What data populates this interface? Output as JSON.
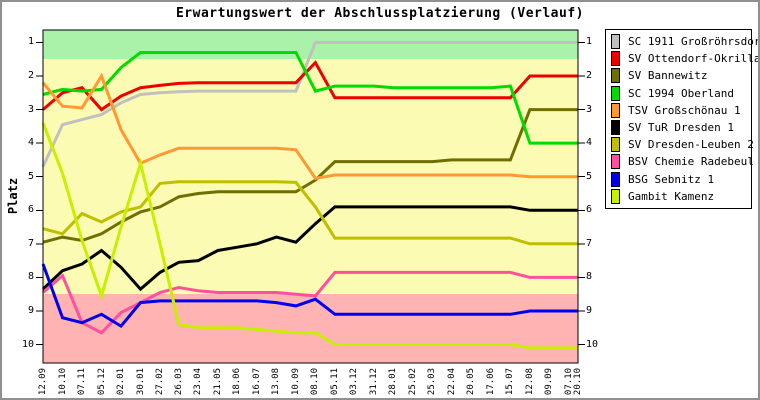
{
  "window": {
    "border_color": "#909090",
    "background": "#ffffff"
  },
  "title": "Erwartungswert der Abschlussplatzierung (Verlauf)",
  "chart_data": {
    "type": "line",
    "title": "Erwartungswert der Abschlussplatzierung (Verlauf)",
    "xlabel": "",
    "ylabel": "Platz",
    "y_axis_inverted": true,
    "ylim": [
      0.63,
      10.55
    ],
    "y_ticks": [
      1,
      2,
      3,
      4,
      5,
      6,
      7,
      8,
      9,
      10
    ],
    "grid": false,
    "legend_position": "right-outside",
    "x_tick_labels": [
      "12.09",
      "10.10",
      "07.11",
      "05.12",
      "02.01",
      "30.01",
      "27.02",
      "26.03",
      "23.04",
      "21.05",
      "18.06",
      "16.07",
      "13.08",
      "10.09",
      "08.10",
      "05.11",
      "03.12",
      "31.12",
      "28.01",
      "25.02",
      "25.03",
      "22.04",
      "20.05",
      "17.06",
      "15.07",
      "12.08",
      "09.09",
      "07.10",
      "20.10"
    ],
    "x_days": [
      0,
      28,
      56,
      84,
      112,
      140,
      168,
      195,
      223,
      251,
      279,
      307,
      335,
      363,
      391,
      419,
      447,
      475,
      503,
      531,
      559,
      587,
      615,
      643,
      671,
      699,
      727,
      755,
      768
    ],
    "bands": [
      {
        "name": "top-zone",
        "from": 0.5,
        "to": 1.5,
        "color": "#AAF1AA"
      },
      {
        "name": "mid-zone",
        "from": 1.5,
        "to": 8.5,
        "color": "#FBFBB3"
      },
      {
        "name": "relegation-zone",
        "from": 8.5,
        "to": 10.6,
        "color": "#FFB3B3"
      }
    ],
    "series": [
      {
        "name": "SC 1911 Großröhrsdorf",
        "color": "#C0C0C0",
        "values": [
          4.7,
          3.45,
          3.3,
          3.15,
          2.8,
          2.55,
          2.5,
          2.47,
          2.45,
          2.45,
          2.45,
          2.45,
          2.45,
          2.45,
          1,
          1,
          1,
          1,
          1,
          1,
          1,
          1,
          1,
          1,
          1,
          1,
          1,
          1,
          1
        ]
      },
      {
        "name": "SV Ottendorf-Okrilla",
        "color": "#EE0000",
        "values": [
          3.0,
          2.5,
          2.35,
          3.0,
          2.6,
          2.35,
          2.28,
          2.22,
          2.2,
          2.2,
          2.2,
          2.2,
          2.2,
          2.2,
          1.6,
          2.65,
          2.65,
          2.65,
          2.65,
          2.65,
          2.65,
          2.65,
          2.65,
          2.65,
          2.65,
          2.0,
          2.0,
          2.0,
          2.0
        ]
      },
      {
        "name": "SV Bannewitz",
        "color": "#6F6F00",
        "values": [
          6.95,
          6.8,
          6.9,
          6.7,
          6.35,
          6.05,
          5.9,
          5.6,
          5.5,
          5.45,
          5.45,
          5.45,
          5.45,
          5.45,
          5.1,
          4.55,
          4.55,
          4.55,
          4.55,
          4.55,
          4.55,
          4.5,
          4.5,
          4.5,
          4.5,
          3.0,
          3.0,
          3.0,
          3.0
        ]
      },
      {
        "name": "SC 1994 Oberland",
        "color": "#00DC00",
        "values": [
          2.55,
          2.4,
          2.45,
          2.4,
          1.75,
          1.3,
          1.3,
          1.3,
          1.3,
          1.3,
          1.3,
          1.3,
          1.3,
          1.3,
          2.45,
          2.3,
          2.3,
          2.3,
          2.35,
          2.35,
          2.35,
          2.35,
          2.35,
          2.35,
          2.3,
          4.0,
          4.0,
          4.0,
          4.0
        ]
      },
      {
        "name": "TSV Großschönau 1",
        "color": "#FF9933",
        "values": [
          2.2,
          2.9,
          2.95,
          2.0,
          3.6,
          4.6,
          4.35,
          4.15,
          4.15,
          4.15,
          4.15,
          4.15,
          4.15,
          4.2,
          5.05,
          4.95,
          4.95,
          4.95,
          4.95,
          4.95,
          4.95,
          4.95,
          4.95,
          4.95,
          4.95,
          5.0,
          5.0,
          5.0,
          5.0
        ]
      },
      {
        "name": "SV TuR Dresden 1",
        "color": "#000000",
        "values": [
          8.35,
          7.8,
          7.6,
          7.2,
          7.7,
          8.35,
          7.85,
          7.55,
          7.5,
          7.2,
          7.1,
          7.0,
          6.8,
          6.95,
          6.4,
          5.9,
          5.9,
          5.9,
          5.9,
          5.9,
          5.9,
          5.9,
          5.9,
          5.9,
          5.9,
          6.0,
          6.0,
          6.0,
          6.0
        ]
      },
      {
        "name": "SV Dresden-Leuben 2",
        "color": "#BFBF00",
        "values": [
          6.55,
          6.7,
          6.1,
          6.35,
          6.05,
          5.9,
          5.2,
          5.15,
          5.15,
          5.15,
          5.15,
          5.15,
          5.15,
          5.17,
          5.9,
          6.83,
          6.83,
          6.83,
          6.83,
          6.83,
          6.83,
          6.83,
          6.83,
          6.83,
          6.83,
          7.0,
          7.0,
          7.0,
          7.0
        ]
      },
      {
        "name": "BSV Chemie Radebeul 1",
        "color": "#FF50A0",
        "values": [
          8.45,
          7.95,
          9.35,
          9.65,
          9.05,
          8.75,
          8.45,
          8.3,
          8.4,
          8.45,
          8.45,
          8.45,
          8.45,
          8.5,
          8.55,
          7.85,
          7.85,
          7.85,
          7.85,
          7.85,
          7.85,
          7.85,
          7.85,
          7.85,
          7.85,
          8.0,
          8.0,
          8.0,
          8.0
        ]
      },
      {
        "name": "BSG Sebnitz 1",
        "color": "#0000EE",
        "values": [
          7.6,
          9.2,
          9.35,
          9.1,
          9.45,
          8.75,
          8.7,
          8.7,
          8.7,
          8.7,
          8.7,
          8.7,
          8.75,
          8.85,
          8.65,
          9.1,
          9.1,
          9.1,
          9.1,
          9.1,
          9.1,
          9.1,
          9.1,
          9.1,
          9.1,
          9.0,
          9.0,
          9.0,
          9.0
        ]
      },
      {
        "name": "Gambit Kamenz",
        "color": "#C8EE00",
        "values": [
          3.4,
          4.9,
          6.9,
          8.55,
          6.5,
          4.6,
          7.0,
          9.4,
          9.5,
          9.5,
          9.5,
          9.55,
          9.6,
          9.65,
          9.65,
          10.0,
          10.0,
          10.0,
          10.0,
          10.0,
          10.0,
          10.0,
          10.0,
          10.0,
          10.0,
          10.1,
          10.1,
          10.1,
          10.1
        ]
      }
    ]
  }
}
